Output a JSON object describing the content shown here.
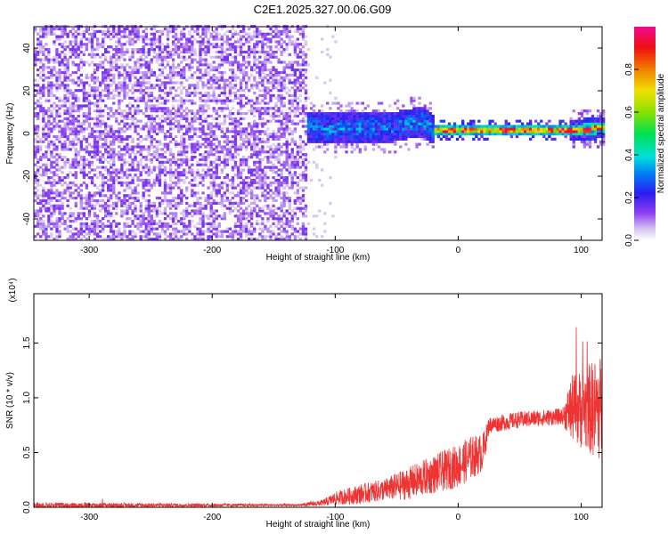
{
  "title": "C2E1.2025.327.00.06.G09",
  "chart_data": [
    {
      "type": "heatmap",
      "name": "spectrogram",
      "xlabel": "Height of straight line (km)",
      "ylabel": "Frequency (Hz)",
      "xlim": [
        -345,
        117
      ],
      "ylim": [
        -50,
        50
      ],
      "xticks": [
        -300,
        -200,
        -100,
        0,
        100
      ],
      "yticks": [
        -40,
        -20,
        0,
        20,
        40
      ],
      "xtick_labels": [
        "-300",
        "-200",
        "-100",
        "0",
        "100"
      ],
      "ytick_labels": [
        "-40",
        "-20",
        "0",
        "20",
        "40"
      ],
      "colorbar": {
        "label": "Normalized spectral amplitude",
        "range": [
          0,
          1
        ],
        "ticks": [
          0.0,
          0.2,
          0.4,
          0.6,
          0.8
        ],
        "tick_labels": [
          "0.0",
          "0.2",
          "0.4",
          "0.6",
          "0.8"
        ]
      },
      "regions": [
        {
          "x_range": [
            -345,
            -125
          ],
          "freq_range": [
            -50,
            50
          ],
          "amplitude": "low noise (~0.0-0.1)"
        },
        {
          "x_range": [
            -125,
            -20
          ],
          "freq_range": [
            -8,
            8
          ],
          "amplitude": "~0.2-0.4 band"
        },
        {
          "x_range": [
            -20,
            117
          ],
          "freq_range": [
            -2,
            3
          ],
          "amplitude": "~0.5-1.0 narrow line near 1 Hz"
        }
      ],
      "line_center_freq": [
        {
          "x": -125,
          "f": 2
        },
        {
          "x": -60,
          "f": 2
        },
        {
          "x": -30,
          "f": 5
        },
        {
          "x": -20,
          "f": 1
        },
        {
          "x": 0,
          "f": 1
        },
        {
          "x": 50,
          "f": 1
        },
        {
          "x": 90,
          "f": 1
        },
        {
          "x": 117,
          "f": 2
        }
      ]
    },
    {
      "type": "line",
      "name": "snr",
      "xlabel": "Height of straight line (km)",
      "ylabel": "SNR (10 * v/v)",
      "scale_label": "(x10⁴)",
      "xlim": [
        -345,
        117
      ],
      "ylim": [
        0,
        1.95
      ],
      "xticks": [
        -300,
        -200,
        -100,
        0,
        100
      ],
      "yticks": [
        0.0,
        0.5,
        1.0,
        1.5
      ],
      "xtick_labels": [
        "-300",
        "-200",
        "-100",
        "0",
        "100"
      ],
      "ytick_labels": [
        "0.0",
        "0.5",
        "1.0",
        "1.5"
      ],
      "color": "#ee3333",
      "series_envelope": [
        {
          "x": -345,
          "mean": 0.02,
          "spread": 0.05
        },
        {
          "x": -130,
          "mean": 0.02,
          "spread": 0.02
        },
        {
          "x": -110,
          "mean": 0.04,
          "spread": 0.06
        },
        {
          "x": -100,
          "mean": 0.08,
          "spread": 0.12
        },
        {
          "x": -80,
          "mean": 0.12,
          "spread": 0.18
        },
        {
          "x": -60,
          "mean": 0.16,
          "spread": 0.2
        },
        {
          "x": -40,
          "mean": 0.22,
          "spread": 0.3
        },
        {
          "x": -20,
          "mean": 0.3,
          "spread": 0.35
        },
        {
          "x": 0,
          "mean": 0.38,
          "spread": 0.4
        },
        {
          "x": 10,
          "mean": 0.45,
          "spread": 0.4
        },
        {
          "x": 20,
          "mean": 0.5,
          "spread": 0.35
        },
        {
          "x": 25,
          "mean": 0.75,
          "spread": 0.15
        },
        {
          "x": 50,
          "mean": 0.8,
          "spread": 0.15
        },
        {
          "x": 85,
          "mean": 0.83,
          "spread": 0.15
        },
        {
          "x": 92,
          "mean": 0.9,
          "spread": 0.6
        },
        {
          "x": 117,
          "mean": 0.9,
          "spread": 1.0
        }
      ]
    }
  ]
}
